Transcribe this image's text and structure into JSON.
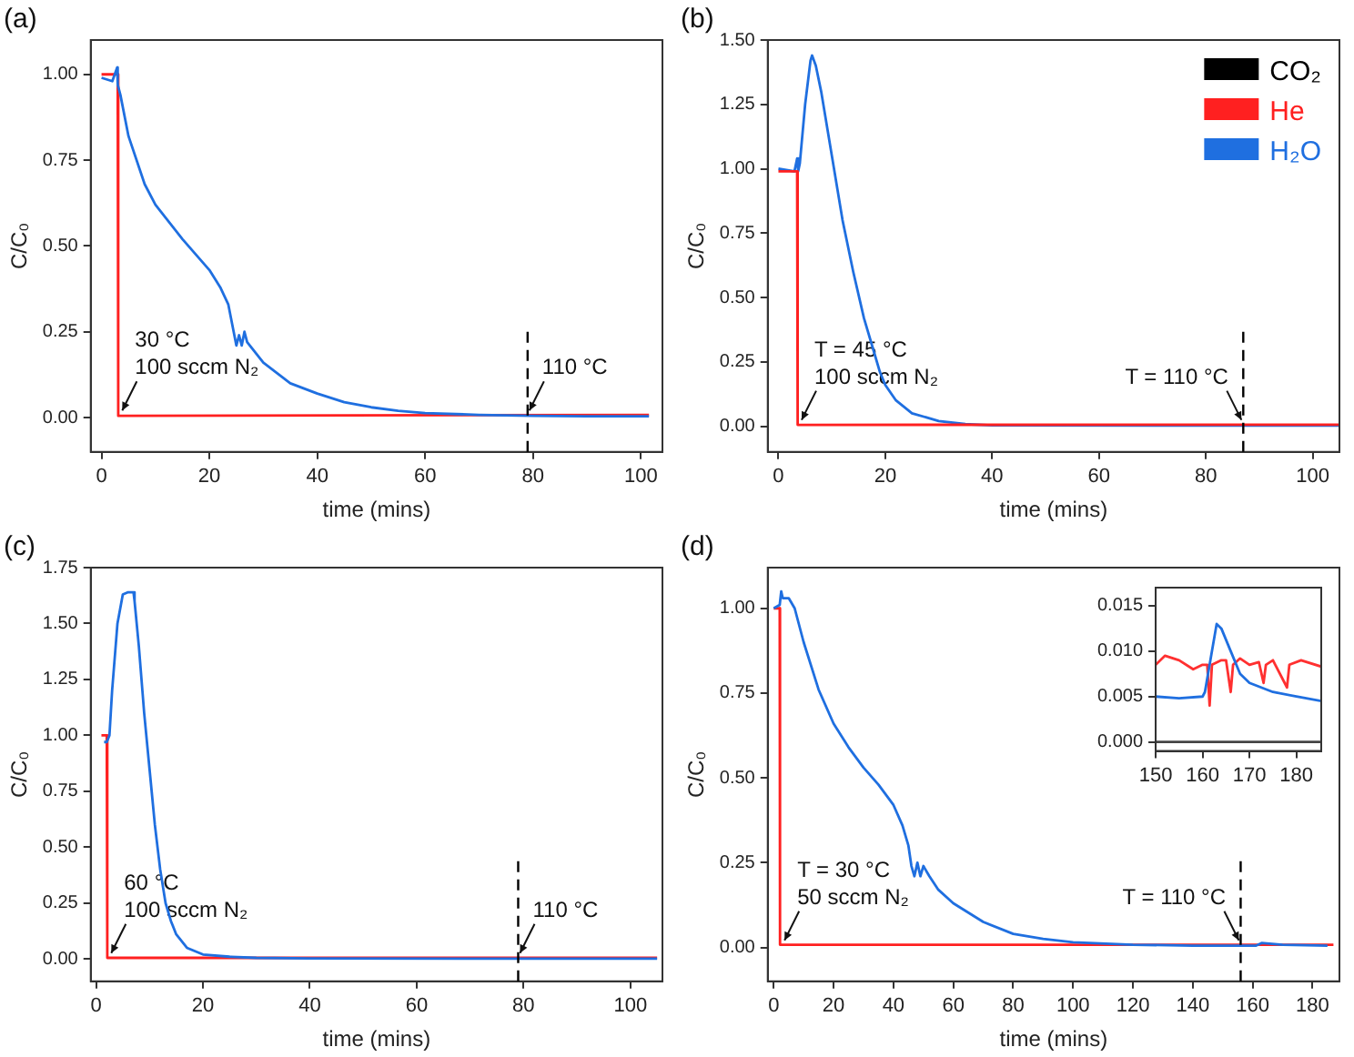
{
  "chart_data": [
    {
      "type": "line",
      "title": "(a)",
      "xlabel": "time (mins)",
      "ylabel": "C/C₀",
      "xlim": [
        -2,
        104
      ],
      "xticks": [
        0,
        20,
        40,
        60,
        80,
        100
      ],
      "ylim": [
        -0.1,
        1.1
      ],
      "yticks": [
        {
          "value": 0,
          "label": "0.00"
        },
        {
          "value": 0.25,
          "label": "0.25"
        },
        {
          "value": 0.5,
          "label": "0.50"
        },
        {
          "value": 0.75,
          "label": "0.75"
        },
        {
          "value": 1,
          "label": "1.00"
        }
      ],
      "series": [
        {
          "color": "#1f6fe0",
          "x": [
            0,
            2,
            2.9,
            3,
            3.5,
            5,
            8,
            10,
            15,
            20,
            22,
            23.5,
            24.5,
            25,
            25.5,
            26,
            26.5,
            27,
            30,
            35,
            40,
            45,
            50,
            55,
            60,
            70,
            80,
            90,
            101.5
          ],
          "values": [
            0.99,
            0.98,
            1.02,
            0.97,
            0.94,
            0.82,
            0.68,
            0.62,
            0.52,
            0.43,
            0.38,
            0.33,
            0.25,
            0.21,
            0.24,
            0.21,
            0.25,
            0.22,
            0.16,
            0.1,
            0.07,
            0.045,
            0.03,
            0.02,
            0.013,
            0.008,
            0.005,
            0.004,
            0.004
          ]
        },
        {
          "color": "#ff2020",
          "x": [
            0,
            3,
            3.1,
            101.5
          ],
          "values": [
            1.0,
            1.0,
            0.005,
            0.008
          ]
        }
      ],
      "ref_lines": [
        {
          "axis": "x",
          "value": 79,
          "line_style": "dashed",
          "color": "#000000"
        }
      ],
      "annotations": [
        {
          "text": "30 °C\n100 sccm N₂",
          "x": 3.5,
          "y": 0.01
        },
        {
          "text": "110 °C",
          "x": 79,
          "y": 0.01
        }
      ]
    },
    {
      "type": "line",
      "title": "(b)",
      "xlabel": "time (mins)",
      "ylabel": "C/C₀",
      "xlim": [
        -2,
        105
      ],
      "xticks": [
        0,
        20,
        40,
        60,
        80,
        100
      ],
      "ylim": [
        -0.1,
        1.5
      ],
      "yticks": [
        {
          "value": 0,
          "label": "0.00"
        },
        {
          "value": 0.25,
          "label": "0.25"
        },
        {
          "value": 0.5,
          "label": "0.50"
        },
        {
          "value": 0.75,
          "label": "0.75"
        },
        {
          "value": 1,
          "label": "1.00"
        },
        {
          "value": 1.25,
          "label": "1.25"
        },
        {
          "value": 1.5,
          "label": "1.50"
        }
      ],
      "legend": "top right",
      "series": [
        {
          "name": "CO₂",
          "color": "#000000"
        },
        {
          "name": "He",
          "color": "#ff2020",
          "x": [
            0,
            3.5,
            3.6,
            105
          ],
          "values": [
            0.99,
            0.99,
            0.005,
            0.006
          ]
        },
        {
          "name": "H₂O",
          "color": "#1f6fe0",
          "x": [
            0,
            3,
            3.5,
            3.7,
            4,
            5,
            6,
            6.3,
            7,
            8,
            10,
            12,
            14,
            16,
            18,
            19,
            20,
            22,
            25,
            30,
            35,
            40,
            105
          ],
          "values": [
            1.0,
            0.99,
            1.04,
            0.99,
            1.02,
            1.25,
            1.42,
            1.44,
            1.4,
            1.3,
            1.05,
            0.8,
            0.6,
            0.42,
            0.28,
            0.21,
            0.16,
            0.1,
            0.05,
            0.02,
            0.008,
            0.003,
            0.002
          ]
        }
      ],
      "ref_lines": [
        {
          "axis": "x",
          "value": 87,
          "line_style": "dashed",
          "color": "#000000"
        }
      ],
      "annotations": [
        {
          "text": "T = 45 °C\n100 sccm N₂",
          "x": 4,
          "y": 0.01
        },
        {
          "text": "T = 110 °C",
          "x": 87,
          "y": 0.01
        }
      ]
    },
    {
      "type": "line",
      "title": "(c)",
      "xlabel": "time (mins)",
      "ylabel": "C/C₀",
      "xlim": [
        -1,
        106
      ],
      "xticks": [
        0,
        20,
        40,
        60,
        80,
        100
      ],
      "ylim": [
        -0.1,
        1.75
      ],
      "yticks": [
        {
          "value": 0,
          "label": "0.00"
        },
        {
          "value": 0.25,
          "label": "0.25"
        },
        {
          "value": 0.5,
          "label": "0.50"
        },
        {
          "value": 0.75,
          "label": "0.75"
        },
        {
          "value": 1,
          "label": "1.00"
        },
        {
          "value": 1.25,
          "label": "1.25"
        },
        {
          "value": 1.5,
          "label": "1.50"
        },
        {
          "value": 1.75,
          "label": "1.75"
        }
      ],
      "series": [
        {
          "color": "#1f6fe0",
          "x": [
            1.5,
            2,
            2.5,
            3,
            4,
            5,
            6,
            7,
            7.2,
            8,
            9,
            10,
            11,
            12,
            13,
            14,
            15,
            17,
            20,
            25,
            30,
            40,
            105
          ],
          "values": [
            0.97,
            0.97,
            1.0,
            1.2,
            1.5,
            1.63,
            1.64,
            1.64,
            1.6,
            1.4,
            1.1,
            0.85,
            0.6,
            0.4,
            0.25,
            0.17,
            0.11,
            0.05,
            0.02,
            0.01,
            0.005,
            0.002,
            0.001
          ]
        },
        {
          "color": "#ff2020",
          "x": [
            1,
            2,
            2.1,
            105
          ],
          "values": [
            1.0,
            1.0,
            0.005,
            0.005
          ]
        }
      ],
      "ref_lines": [
        {
          "axis": "x",
          "value": 79,
          "line_style": "dashed",
          "color": "#000000"
        }
      ],
      "annotations": [
        {
          "text": "60 °C\n100 sccm N₂",
          "x": 2.5,
          "y": 0.01
        },
        {
          "text": "110 °C",
          "x": 79,
          "y": 0.01
        }
      ]
    },
    {
      "type": "line",
      "title": "(d)",
      "xlabel": "time (mins)",
      "ylabel": "C/C₀",
      "xlim": [
        -2,
        189
      ],
      "xticks": [
        0,
        20,
        40,
        60,
        80,
        100,
        120,
        140,
        160,
        180
      ],
      "ylim": [
        -0.1,
        1.12
      ],
      "yticks": [
        {
          "value": 0,
          "label": "0.00"
        },
        {
          "value": 0.25,
          "label": "0.25"
        },
        {
          "value": 0.5,
          "label": "0.50"
        },
        {
          "value": 0.75,
          "label": "0.75"
        },
        {
          "value": 1,
          "label": "1.00"
        }
      ],
      "series": [
        {
          "color": "#1f6fe0",
          "x": [
            0,
            2,
            2.5,
            3,
            5,
            7,
            10,
            15,
            20,
            25,
            30,
            35,
            40,
            43,
            45,
            46,
            47,
            48,
            49,
            50,
            52,
            55,
            60,
            70,
            80,
            90,
            100,
            120,
            140,
            155,
            161,
            163,
            170,
            185
          ],
          "values": [
            1.0,
            1.01,
            1.05,
            1.03,
            1.03,
            1.0,
            0.9,
            0.76,
            0.66,
            0.59,
            0.53,
            0.48,
            0.42,
            0.36,
            0.3,
            0.24,
            0.21,
            0.25,
            0.21,
            0.24,
            0.21,
            0.17,
            0.13,
            0.075,
            0.04,
            0.025,
            0.015,
            0.008,
            0.005,
            0.005,
            0.005,
            0.013,
            0.008,
            0.005
          ]
        },
        {
          "color": "#ff2020",
          "x": [
            0,
            2,
            2.1,
            187
          ],
          "values": [
            1.0,
            1.0,
            0.008,
            0.008
          ]
        }
      ],
      "ref_lines": [
        {
          "axis": "x",
          "value": 156,
          "line_style": "dashed",
          "color": "#000000"
        }
      ],
      "annotations": [
        {
          "text": "T = 30 °C\n50 sccm N₂",
          "x": 3,
          "y": 0.01
        },
        {
          "text": "T = 110 °C",
          "x": 156,
          "y": 0.01
        }
      ]
    },
    {
      "type": "line",
      "xlim": [
        150,
        185.3
      ],
      "xticks": [
        150,
        160,
        170,
        180
      ],
      "ylim": [
        -0.001,
        0.017
      ],
      "yticks": [
        {
          "value": 0,
          "label": "0.000"
        },
        {
          "value": 0.005,
          "label": "0.005"
        },
        {
          "value": 0.01,
          "label": "0.010"
        },
        {
          "value": 0.015,
          "label": "0.015"
        }
      ],
      "series": [
        {
          "color": "#1f6fe0",
          "x": [
            150,
            155,
            160,
            160.5,
            162,
            163,
            164,
            166,
            168,
            170,
            175,
            180,
            185.3
          ],
          "values": [
            0.005,
            0.0048,
            0.005,
            0.0055,
            0.01,
            0.013,
            0.0125,
            0.01,
            0.0075,
            0.0065,
            0.0055,
            0.005,
            0.0045
          ]
        },
        {
          "color": "#ff3030",
          "x": [
            150,
            152,
            155,
            158,
            160,
            161,
            161.5,
            162,
            164,
            165,
            166,
            166.5,
            168,
            170,
            172,
            173,
            173.5,
            175,
            178,
            178.5,
            181,
            185.3
          ],
          "values": [
            0.0085,
            0.0095,
            0.009,
            0.008,
            0.0085,
            0.0085,
            0.004,
            0.0085,
            0.009,
            0.009,
            0.0055,
            0.0085,
            0.0092,
            0.0085,
            0.0088,
            0.0065,
            0.0085,
            0.009,
            0.006,
            0.0085,
            0.009,
            0.0083
          ]
        },
        {
          "color": "#444444",
          "x": [
            150,
            185.3
          ],
          "values": [
            0,
            0
          ]
        }
      ]
    }
  ]
}
